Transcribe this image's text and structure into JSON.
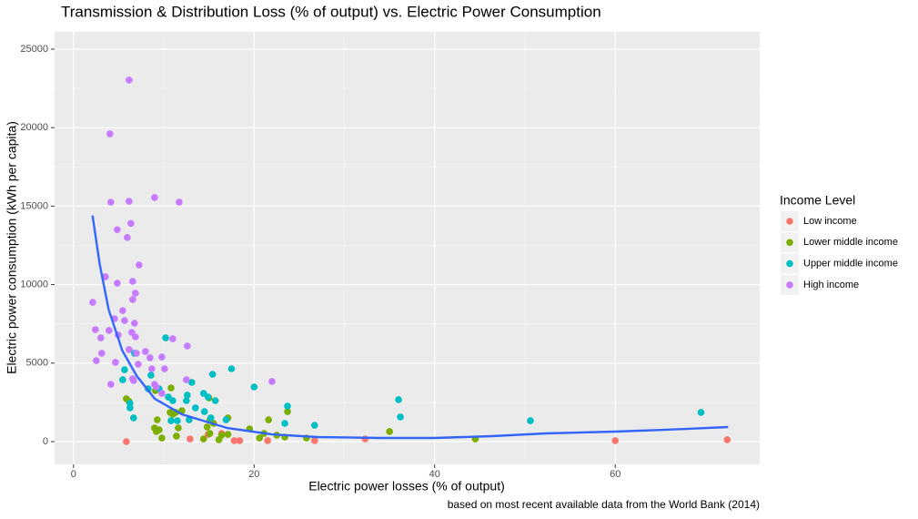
{
  "chart_data": {
    "type": "scatter",
    "title": "Transmission & Distribution Loss (% of output) vs. Electric Power Consumption",
    "x_label": "Electric power losses (% of output)",
    "y_label": "Electric power consumption (kWh per capita)",
    "caption": "based on most recent available data from the World Bank (2014)",
    "legend_title": "Income Level",
    "legend_position": "right",
    "grid": true,
    "xlim": [
      -2.1,
      76
    ],
    "ylim": [
      -1450,
      26100
    ],
    "xticks": [
      0,
      20,
      40,
      60
    ],
    "yticks": [
      0,
      5000,
      10000,
      15000,
      20000,
      25000
    ],
    "series": [
      {
        "name": "Low income",
        "color": "#F8766D",
        "x": [
          5.85,
          12.9,
          14.9,
          16.4,
          17.8,
          18.4,
          21.5,
          26.7,
          32.3,
          60.0,
          72.4
        ],
        "values": [
          0,
          170,
          460,
          520,
          60,
          60,
          60,
          60,
          170,
          60,
          120
        ]
      },
      {
        "name": "Lower middle income",
        "color": "#7CAE00",
        "x": [
          44.5,
          35.0,
          23.7,
          21.6,
          19.5,
          21.1,
          20.6,
          22.5,
          23.4,
          25.8,
          5.85,
          6.15,
          9.07,
          9.27,
          9.48,
          9.17,
          9.78,
          10.7,
          10.8,
          11.0,
          11.6,
          11.4,
          11.3,
          12.0,
          14.4,
          14.8,
          15.1,
          15.5,
          15.0,
          16.4,
          17.1,
          17.1,
          16.1,
          15.1,
          8.97
        ],
        "values": [
          170,
          640,
          1910,
          1390,
          810,
          520,
          230,
          410,
          290,
          230,
          2730,
          2550,
          3250,
          1390,
          750,
          640,
          230,
          1860,
          3420,
          1740,
          870,
          350,
          1860,
          1970,
          170,
          930,
          1390,
          1160,
          2780,
          410,
          1510,
          460,
          120,
          520,
          870
        ]
      },
      {
        "name": "Upper middle income",
        "color": "#00BFC4",
        "x": [
          69.5,
          50.6,
          36.0,
          36.2,
          26.7,
          23.7,
          23.4,
          20.0,
          17.5,
          15.4,
          10.2,
          5.65,
          5.44,
          6.75,
          8.57,
          8.27,
          9.48,
          10.5,
          10.99,
          6.25,
          6.25,
          6.65,
          10.8,
          13.1,
          12.6,
          12.5,
          13.5,
          14.4,
          14.9,
          15.7,
          14.5,
          12.8,
          11.5,
          16.9,
          15.2
        ],
        "values": [
          1860,
          1330,
          2670,
          1570,
          1040,
          2260,
          1160,
          3480,
          4640,
          4290,
          6610,
          4580,
          3940,
          5630,
          4230,
          3360,
          3360,
          2840,
          2610,
          2440,
          2150,
          1510,
          1330,
          3770,
          2960,
          2610,
          2150,
          3070,
          2840,
          2610,
          1910,
          1390,
          1330,
          1390,
          1510
        ]
      },
      {
        "name": "High income",
        "color": "#C77CFF",
        "x": [
          6.15,
          4.03,
          4.13,
          6.15,
          8.97,
          11.7,
          4.84,
          6.35,
          5.95,
          7.26,
          2.12,
          3.53,
          4.84,
          6.55,
          6.85,
          6.55,
          5.44,
          2.42,
          3.02,
          3.93,
          4.54,
          5.65,
          6.75,
          4.94,
          6.45,
          6.85,
          3.12,
          2.52,
          4.64,
          6.15,
          6.96,
          7.96,
          8.47,
          7.16,
          9.78,
          10.99,
          12.6,
          4.13,
          6.55,
          6.65,
          8.67,
          10.08,
          8.97,
          9.17,
          9.78,
          12.5,
          21.98
        ],
        "values": [
          23030,
          19600,
          15250,
          15310,
          15550,
          15250,
          13500,
          13900,
          13000,
          11250,
          8870,
          10500,
          10090,
          10210,
          9450,
          9050,
          8350,
          7130,
          6610,
          7080,
          7830,
          7710,
          7540,
          6790,
          6960,
          6670,
          5630,
          5160,
          5050,
          5860,
          5630,
          5740,
          5340,
          4930,
          5390,
          6550,
          6090,
          3650,
          4000,
          3890,
          4640,
          4640,
          3650,
          3480,
          3070,
          3940,
          3830
        ]
      }
    ],
    "trend": {
      "color": "#3366FF",
      "x": [
        2.1,
        2.9,
        3.9,
        5.4,
        7.0,
        9.0,
        12,
        17,
        22,
        27,
        34,
        40,
        46.3,
        52.3,
        60,
        65.4,
        72.5
      ],
      "values": [
        14400,
        11300,
        8400,
        5800,
        4180,
        2730,
        1740,
        870,
        460,
        290,
        230,
        230,
        350,
        520,
        640,
        750,
        930
      ]
    }
  }
}
